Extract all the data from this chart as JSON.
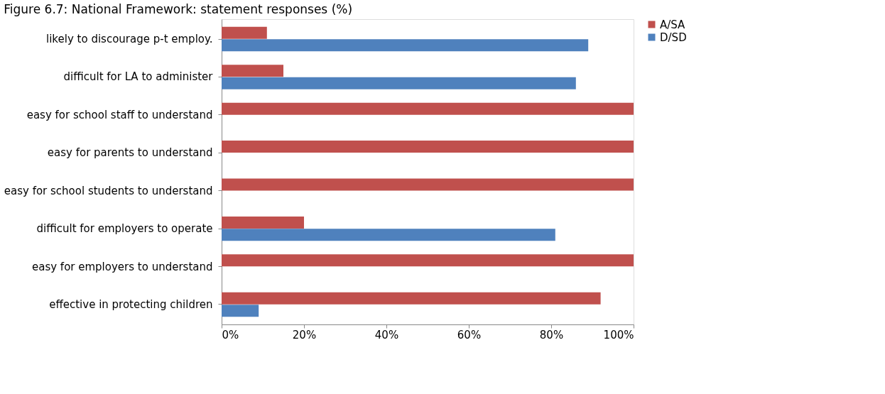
{
  "chart_data": {
    "type": "bar",
    "orientation": "horizontal",
    "title": "Figure 6.7: National Framework: statement responses (%)",
    "categories": [
      "likely to discourage p-t employ.",
      "difficult for LA to administer",
      "easy for school staff to understand",
      "easy for parents to understand",
      "easy for school students to understand",
      "difficult for employers to operate",
      "easy for employers to understand",
      "effective in protecting children"
    ],
    "series": [
      {
        "name": "A/SA",
        "color": "#c0504d",
        "values": [
          11,
          15,
          100,
          100,
          100,
          20,
          100,
          92
        ]
      },
      {
        "name": "D/SD",
        "color": "#4f81bd",
        "values": [
          89,
          86,
          0,
          0,
          0,
          81,
          0,
          9
        ]
      }
    ],
    "xlim": [
      0,
      100
    ],
    "xticks": [
      {
        "value": 0,
        "label": "0%"
      },
      {
        "value": 20,
        "label": "20%"
      },
      {
        "value": 40,
        "label": "40%"
      },
      {
        "value": 60,
        "label": "60%"
      },
      {
        "value": 80,
        "label": "80%"
      },
      {
        "value": 100,
        "label": "100%"
      }
    ],
    "grid": false,
    "legend": "right"
  }
}
